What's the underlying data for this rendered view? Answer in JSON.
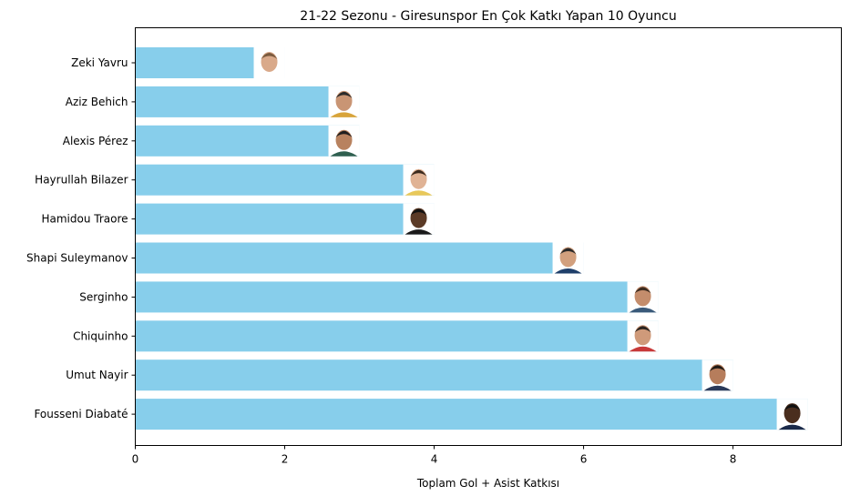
{
  "chart_data": {
    "type": "bar",
    "orientation": "horizontal",
    "title": "21-22 Sezonu - Giresunspor En Çok Katkı Yapan 10 Oyuncu",
    "xlabel": "Toplam Gol + Asist Katkısı",
    "ylabel": "",
    "xlim": [
      0,
      9.45
    ],
    "xticks": [
      0,
      2,
      4,
      6,
      8
    ],
    "grid": false,
    "bar_color": "#87ceeb",
    "categories": [
      "Zeki Yavru",
      "Aziz Behich",
      "Alexis Pérez",
      "Hayrullah Bilazer",
      "Hamidou Traore",
      "Shapi Suleymanov",
      "Serginho",
      "Chiquinho",
      "Umut Nayir",
      "Fousseni Diabaté"
    ],
    "values": [
      2,
      3,
      3,
      4,
      4,
      6,
      7,
      7,
      8,
      9
    ],
    "annotations": "player photo at the end of each bar"
  }
}
